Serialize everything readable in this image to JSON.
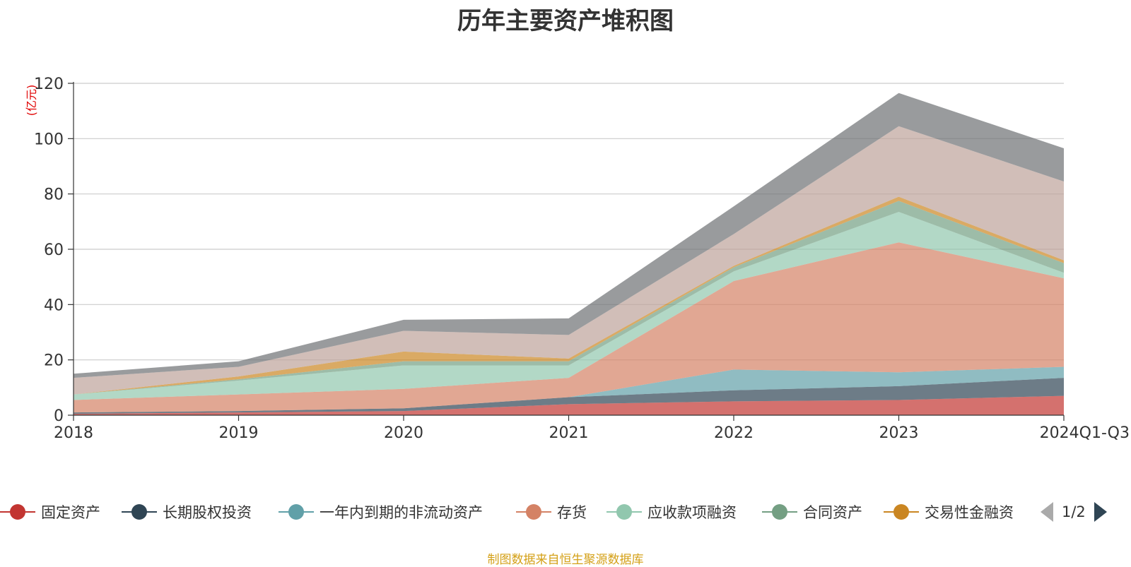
{
  "chart_data": {
    "type": "area",
    "stacked": true,
    "title": "历年主要资产堆积图",
    "unit_label": "(亿元)",
    "x": [
      "2018",
      "2019",
      "2020",
      "2021",
      "2022",
      "2023",
      "2024Q1-Q3"
    ],
    "ylim": [
      0,
      120
    ],
    "yticks": [
      0,
      20,
      40,
      60,
      80,
      100,
      120
    ],
    "grid": true,
    "series": [
      {
        "name": "固定资产",
        "color": "#c23531",
        "values": [
          0.5,
          1.0,
          1.5,
          4.0,
          5.0,
          5.5,
          7.0
        ]
      },
      {
        "name": "长期股权投资",
        "color": "#2f4554",
        "values": [
          0.5,
          0.5,
          1.0,
          2.5,
          4.0,
          5.0,
          6.5
        ]
      },
      {
        "name": "一年内到期的非流动资产",
        "color": "#61a0a8",
        "values": [
          0.0,
          0.0,
          0.0,
          0.0,
          7.5,
          5.0,
          4.0
        ]
      },
      {
        "name": "存货",
        "color": "#d48265",
        "values": [
          4.5,
          6.0,
          7.0,
          7.0,
          32.0,
          47.0,
          32.0
        ]
      },
      {
        "name": "应收款项融资",
        "color": "#91c7ae",
        "values": [
          2.0,
          5.0,
          8.5,
          4.5,
          3.5,
          11.0,
          2.0
        ]
      },
      {
        "name": "合同资产",
        "color": "#749f83",
        "values": [
          0.0,
          0.5,
          1.5,
          1.5,
          1.5,
          4.0,
          3.5
        ]
      },
      {
        "name": "交易性金融资",
        "color": "#ca8622",
        "values": [
          0.0,
          1.0,
          3.5,
          1.0,
          0.5,
          1.5,
          1.0
        ]
      },
      {
        "name": "",
        "color": "#bda29a",
        "values": [
          6.0,
          3.5,
          7.5,
          8.5,
          11.5,
          25.5,
          28.5
        ]
      },
      {
        "name": "",
        "color": "#6e7074",
        "values": [
          1.5,
          2.0,
          4.0,
          6.0,
          10.0,
          12.0,
          12.0
        ]
      }
    ],
    "legend_position": "bottom"
  },
  "legend": {
    "items": [
      {
        "label": "固定资产",
        "color": "#c23531"
      },
      {
        "label": "长期股权投资",
        "color": "#2f4554"
      },
      {
        "label": "一年内到期的非流动资产",
        "color": "#61a0a8"
      },
      {
        "label": "存货",
        "color": "#d48265"
      },
      {
        "label": "应收款项融资",
        "color": "#91c7ae"
      },
      {
        "label": "合同资产",
        "color": "#749f83"
      },
      {
        "label": "交易性金融资",
        "color": "#ca8622"
      }
    ],
    "page": "1/2"
  },
  "footer": "制图数据来自恒生聚源数据库"
}
